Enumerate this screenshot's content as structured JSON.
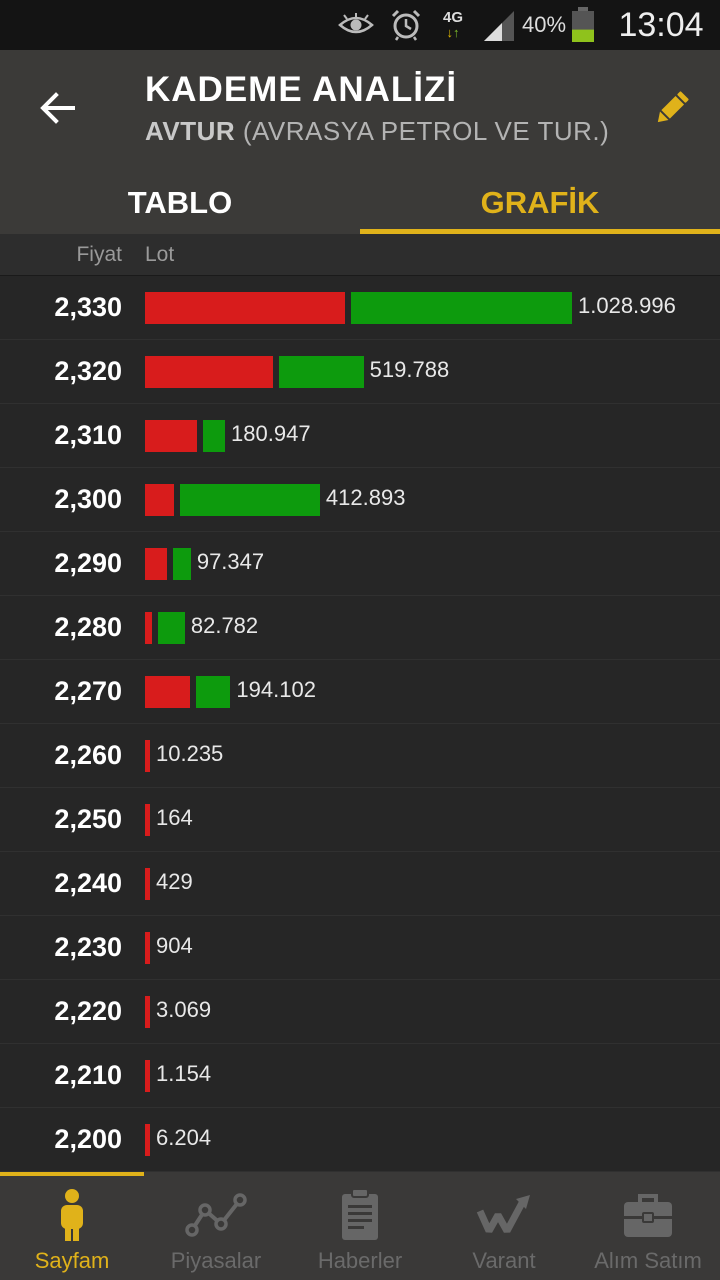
{
  "status_bar": {
    "network_label": "4G",
    "battery_percent": "40%",
    "battery_level": 0.4,
    "time": "13:04"
  },
  "header": {
    "title": "KADEME ANALİZİ",
    "symbol": "AVTUR",
    "company": "(AVRASYA PETROL VE TUR.)",
    "tabs": [
      {
        "label": "TABLO",
        "active": false
      },
      {
        "label": "GRAFİK",
        "active": true
      }
    ]
  },
  "columns": {
    "price": "Fiyat",
    "lot": "Lot"
  },
  "colors": {
    "sell": "#d81c1c",
    "buy": "#0d9b0d",
    "accent": "#e0b21a"
  },
  "rows": [
    {
      "price": "2,330",
      "lot": "1.028.996",
      "lot_value": 1028996,
      "sell_share": 0.475
    },
    {
      "price": "2,320",
      "lot": "519.788",
      "lot_value": 519788,
      "sell_share": 0.6
    },
    {
      "price": "2,310",
      "lot": "180.947",
      "lot_value": 180947,
      "sell_share": 0.7
    },
    {
      "price": "2,300",
      "lot": "412.893",
      "lot_value": 412893,
      "sell_share": 0.17
    },
    {
      "price": "2,290",
      "lot": "97.347",
      "lot_value": 97347,
      "sell_share": 0.55
    },
    {
      "price": "2,280",
      "lot": "82.782",
      "lot_value": 82782,
      "sell_share": 0.2
    },
    {
      "price": "2,270",
      "lot": "194.102",
      "lot_value": 194102,
      "sell_share": 0.57
    },
    {
      "price": "2,260",
      "lot": "10.235",
      "lot_value": 10235,
      "sell_share": 1
    },
    {
      "price": "2,250",
      "lot": "164",
      "lot_value": 164,
      "sell_share": 1
    },
    {
      "price": "2,240",
      "lot": "429",
      "lot_value": 429,
      "sell_share": 1
    },
    {
      "price": "2,230",
      "lot": "904",
      "lot_value": 904,
      "sell_share": 1
    },
    {
      "price": "2,220",
      "lot": "3.069",
      "lot_value": 3069,
      "sell_share": 1
    },
    {
      "price": "2,210",
      "lot": "1.154",
      "lot_value": 1154,
      "sell_share": 1
    },
    {
      "price": "2,200",
      "lot": "6.204",
      "lot_value": 6204,
      "sell_share": 1
    }
  ],
  "bottom_nav": [
    {
      "label": "Sayfam",
      "icon": "person-icon",
      "active": true
    },
    {
      "label": "Piyasalar",
      "icon": "chart-line-icon",
      "active": false
    },
    {
      "label": "Haberler",
      "icon": "news-icon",
      "active": false
    },
    {
      "label": "Varant",
      "icon": "warrant-icon",
      "active": false
    },
    {
      "label": "Alım Satım",
      "icon": "briefcase-icon",
      "active": false
    }
  ]
}
